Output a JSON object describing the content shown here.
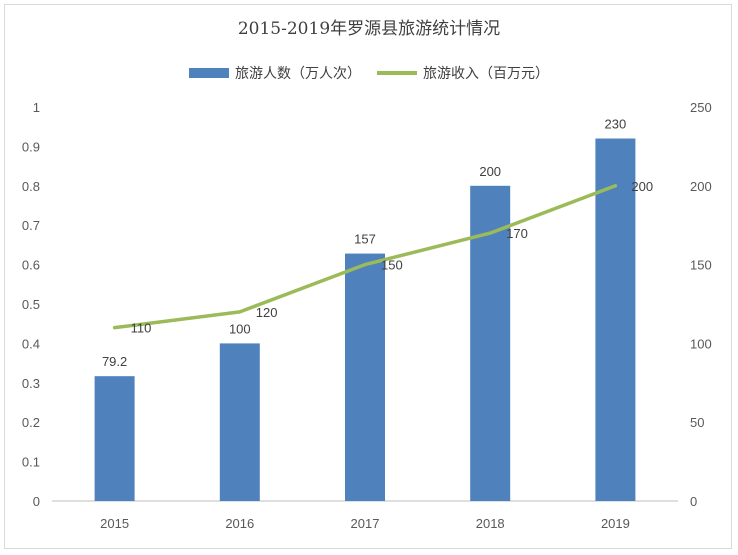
{
  "chart_data": {
    "type": "bar+line",
    "title": "2015-2019年罗源县旅游统计情况",
    "categories": [
      "2015",
      "2016",
      "2017",
      "2018",
      "2019"
    ],
    "series": [
      {
        "name": "旅游人数（万人次）",
        "type": "bar",
        "axis": "left",
        "values": [
          79.2,
          100,
          157,
          200,
          230
        ],
        "color": "#4f81bd"
      },
      {
        "name": "旅游收入（百万元）",
        "type": "line",
        "axis": "right",
        "values": [
          110,
          120,
          150,
          170,
          200
        ],
        "color": "#9bbb59"
      }
    ],
    "bar_labels": [
      "79.2",
      "100",
      "157",
      "200",
      "230"
    ],
    "line_labels": [
      "110",
      "120",
      "150",
      "170",
      "200"
    ],
    "left_axis": {
      "ticks": [
        "0",
        "0.1",
        "0.2",
        "0.3",
        "0.4",
        "0.5",
        "0.6",
        "0.7",
        "0.8",
        "0.9",
        "1"
      ],
      "ylim": [
        0,
        1
      ]
    },
    "right_axis": {
      "ticks": [
        "0",
        "50",
        "100",
        "150",
        "200",
        "250"
      ],
      "ylim": [
        0,
        250
      ]
    },
    "grid": false,
    "legend_position": "top"
  }
}
